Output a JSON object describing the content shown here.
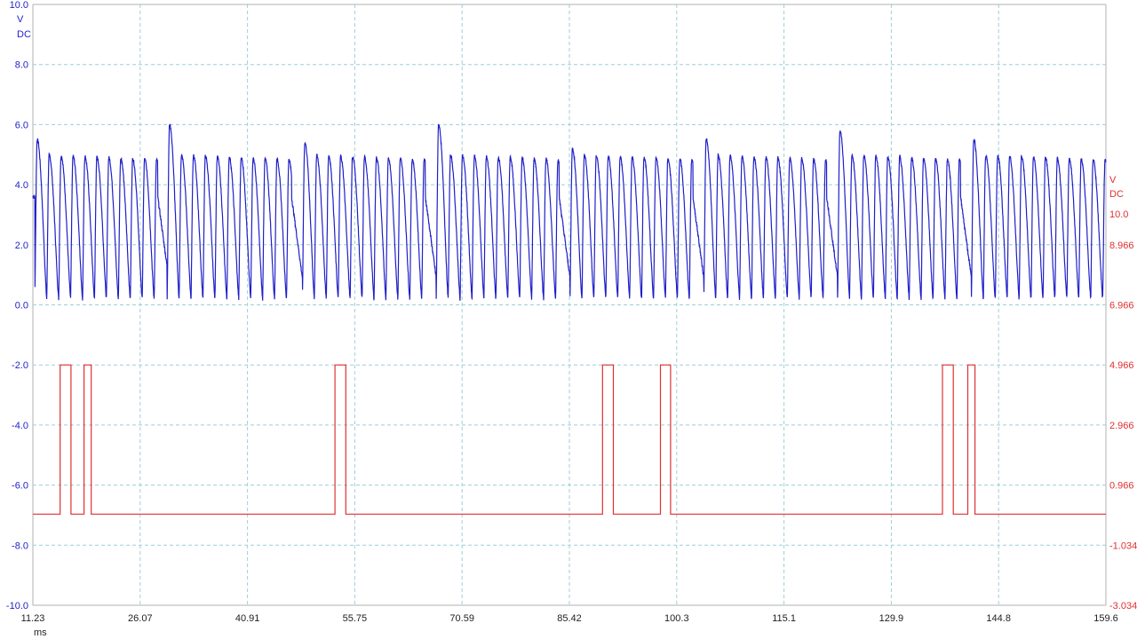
{
  "chart_data": {
    "type": "line",
    "x_axis": {
      "unit": "ms",
      "range": [
        11.23,
        159.6
      ],
      "tick_labels": [
        "11.23",
        "26.07",
        "40.91",
        "55.75",
        "70.59",
        "85.42",
        "100.3",
        "115.1",
        "129.9",
        "144.8",
        "159.6"
      ]
    },
    "left_axis": {
      "unit": "V",
      "coupling": "DC",
      "range": [
        -10.0,
        10.0
      ],
      "tick_labels": [
        "10.0",
        "8.0",
        "6.0",
        "4.0",
        "2.0",
        "0.0",
        "-2.0",
        "-4.0",
        "-6.0",
        "-8.0",
        "-10.0"
      ],
      "color": "#1f1fc8"
    },
    "right_axis": {
      "unit": "V",
      "coupling": "DC",
      "range": [
        -3.034,
        16.966
      ],
      "tick_labels": [
        "10.0",
        "8.966",
        "6.966",
        "4.966",
        "2.966",
        "0.966",
        "-1.034",
        "-3.034"
      ],
      "tick_values": [
        10.0,
        8.966,
        6.966,
        4.966,
        2.966,
        0.966,
        -1.034,
        -3.034
      ],
      "color": "#e03030"
    },
    "grid": true,
    "series": [
      {
        "axis": "left",
        "color": "#1f1fc8",
        "kind": "periodic oscillation",
        "baseline_v": 0.0,
        "peak_v": 5.0,
        "period_ms": 1.65,
        "bursts": [
          {
            "start_ms": 11.5,
            "end_ms": 28.5,
            "first_peak_v": 5.5
          },
          {
            "start_ms": 29.8,
            "end_ms": 47.0,
            "first_peak_v": 6.0
          },
          {
            "start_ms": 48.5,
            "end_ms": 65.5,
            "first_peak_v": 5.4
          },
          {
            "start_ms": 67.0,
            "end_ms": 84.0,
            "first_peak_v": 6.0
          },
          {
            "start_ms": 85.5,
            "end_ms": 102.5,
            "first_peak_v": 5.2
          },
          {
            "start_ms": 104.0,
            "end_ms": 121.0,
            "first_peak_v": 5.5
          },
          {
            "start_ms": 122.5,
            "end_ms": 139.5,
            "first_peak_v": 5.8
          },
          {
            "start_ms": 141.0,
            "end_ms": 159.6,
            "first_peak_v": 5.5
          }
        ]
      },
      {
        "axis": "right",
        "color": "#e03030",
        "kind": "pulse train",
        "low_v": 0.0,
        "high_v": 4.966,
        "pulses_ms": [
          [
            15.0,
            16.5
          ],
          [
            18.3,
            19.3
          ],
          [
            53.0,
            54.5
          ],
          [
            90.0,
            91.5
          ],
          [
            98.0,
            99.4
          ],
          [
            137.0,
            138.5
          ],
          [
            140.5,
            141.5
          ]
        ]
      }
    ]
  }
}
